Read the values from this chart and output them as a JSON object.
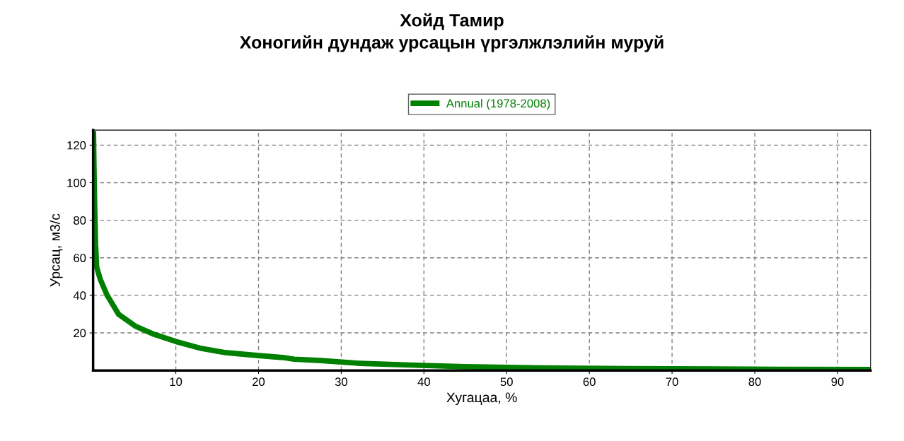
{
  "chart_data": {
    "type": "line",
    "title": "Хойд Тамир\nХоногийн дундаж урсацын үргэлжлэлийн муруй",
    "xlabel": "Хугацаа, %",
    "ylabel": "Урсац, м3/с",
    "xlim": [
      0,
      94
    ],
    "ylim": [
      0,
      128
    ],
    "xticks": [
      10,
      20,
      30,
      40,
      50,
      60,
      70,
      80,
      90
    ],
    "yticks": [
      20,
      40,
      60,
      80,
      100,
      120
    ],
    "grid": true,
    "legend": "top",
    "marker": "none",
    "line_style": "solid",
    "series": [
      {
        "name": "Annual (1978-2008)",
        "color": "#008000",
        "x": [
          0.05,
          0.1,
          0.2,
          0.3,
          0.43,
          0.86,
          1.7,
          3.1,
          5.1,
          7.4,
          10,
          13.1,
          16,
          20,
          22.9,
          24.3,
          27.5,
          32.1,
          39,
          45,
          52.8,
          64.4,
          82.8,
          93.8
        ],
        "values": [
          126,
          110,
          85,
          67,
          55,
          48.6,
          40,
          29.8,
          23.6,
          19.2,
          15.4,
          11.7,
          9.5,
          7.9,
          6.9,
          6.0,
          5.3,
          3.8,
          2.8,
          2.0,
          1.4,
          1.0,
          0.6,
          0.5
        ]
      }
    ]
  }
}
